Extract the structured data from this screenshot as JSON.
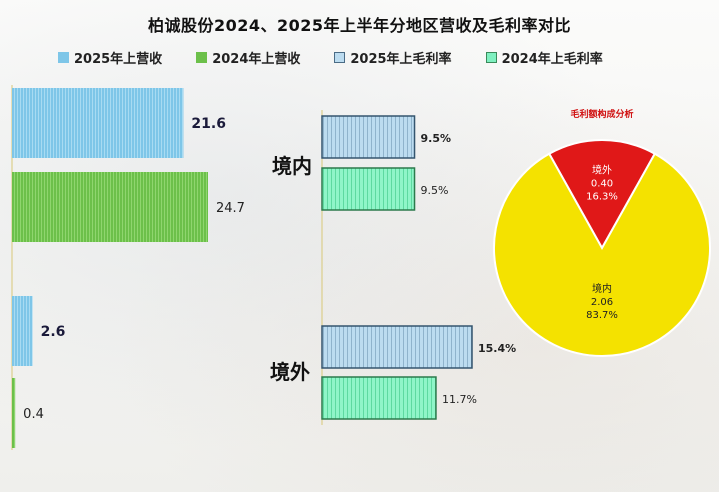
{
  "title": "柏诚股份2024、2025年上半年分地区营收及毛利率对比",
  "legend": [
    {
      "label": "2025年上营收",
      "color": "#7ec6e8"
    },
    {
      "label": "2024年上营收",
      "color": "#6cc04a"
    },
    {
      "label": "2025年上毛利率",
      "color": "#bcdcf0"
    },
    {
      "label": "2024年上毛利率",
      "color": "#7ff0c0"
    }
  ],
  "regions": [
    "境内",
    "境外"
  ],
  "chart_data": [
    {
      "type": "bar",
      "categories": [
        "境内",
        "境外"
      ],
      "series": [
        {
          "name": "2025年上营收",
          "values": [
            21.6,
            2.6
          ],
          "labels": [
            "21.6",
            "2.6"
          ]
        },
        {
          "name": "2024年上营收",
          "values": [
            24.7,
            0.4
          ],
          "labels": [
            "24.7",
            "0.4"
          ]
        }
      ],
      "orientation": "horizontal"
    },
    {
      "type": "bar",
      "categories": [
        "境内",
        "境外"
      ],
      "series": [
        {
          "name": "2025年上毛利率",
          "values": [
            9.5,
            15.4
          ],
          "labels": [
            "9.5%",
            "15.4%"
          ]
        },
        {
          "name": "2024年上毛利率",
          "values": [
            9.5,
            11.7
          ],
          "labels": [
            "9.5%",
            "11.7%"
          ]
        }
      ],
      "orientation": "horizontal"
    },
    {
      "type": "pie",
      "title": "毛利额构成分析",
      "slices": [
        {
          "label": "境外",
          "value": 0.4,
          "value_text": "0.40",
          "pct_text": "16.3%",
          "color": "#e01818"
        },
        {
          "label": "境内",
          "value": 2.06,
          "value_text": "2.06",
          "pct_text": "83.7%",
          "color": "#f4e200"
        }
      ]
    }
  ]
}
